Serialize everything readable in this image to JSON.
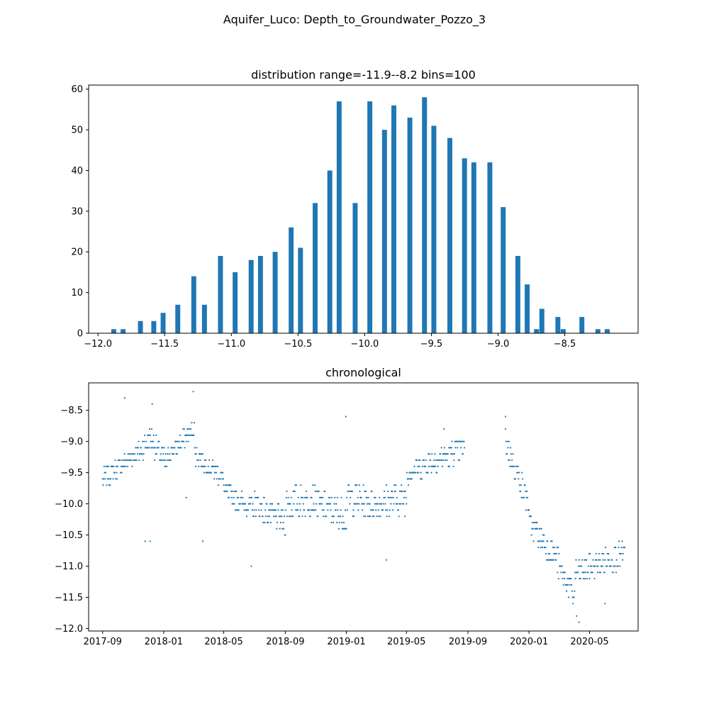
{
  "figure": {
    "suptitle": "Aquifer_Luco: Depth_to_Groundwater_Pozzo_3"
  },
  "colors": {
    "series": "#1f77b4",
    "axes": "#000000",
    "background": "#ffffff"
  },
  "chart_data": [
    {
      "type": "bar",
      "title": "distribution range=-11.9--8.2 bins=100",
      "xlabel": "",
      "ylabel": "",
      "xlim": [
        -12.07,
        -7.95
      ],
      "ylim": [
        0,
        61
      ],
      "bar_width": 0.037,
      "xticks": [
        -12.0,
        -11.5,
        -11.0,
        -10.5,
        -10.0,
        -9.5,
        -9.0,
        -8.5
      ],
      "xtick_labels": [
        "−12.0",
        "−11.5",
        "−11.0",
        "−10.5",
        "−10.0",
        "−9.5",
        "−9.0",
        "−8.5"
      ],
      "yticks": [
        0,
        10,
        20,
        30,
        40,
        50,
        60
      ],
      "ytick_labels": [
        "0",
        "10",
        "20",
        "30",
        "40",
        "50",
        "60"
      ],
      "grid": false,
      "bins": [
        {
          "x": -11.9,
          "count": 1
        },
        {
          "x": -11.83,
          "count": 1
        },
        {
          "x": -11.7,
          "count": 3
        },
        {
          "x": -11.6,
          "count": 3
        },
        {
          "x": -11.53,
          "count": 5
        },
        {
          "x": -11.42,
          "count": 7
        },
        {
          "x": -11.3,
          "count": 14
        },
        {
          "x": -11.22,
          "count": 7
        },
        {
          "x": -11.1,
          "count": 19
        },
        {
          "x": -10.99,
          "count": 15
        },
        {
          "x": -10.87,
          "count": 18
        },
        {
          "x": -10.8,
          "count": 19
        },
        {
          "x": -10.69,
          "count": 20
        },
        {
          "x": -10.57,
          "count": 26
        },
        {
          "x": -10.5,
          "count": 21
        },
        {
          "x": -10.39,
          "count": 32
        },
        {
          "x": -10.28,
          "count": 40
        },
        {
          "x": -10.21,
          "count": 57
        },
        {
          "x": -10.09,
          "count": 32
        },
        {
          "x": -9.98,
          "count": 57
        },
        {
          "x": -9.87,
          "count": 50
        },
        {
          "x": -9.8,
          "count": 56
        },
        {
          "x": -9.68,
          "count": 53
        },
        {
          "x": -9.57,
          "count": 58
        },
        {
          "x": -9.5,
          "count": 51
        },
        {
          "x": -9.38,
          "count": 48
        },
        {
          "x": -9.27,
          "count": 43
        },
        {
          "x": -9.2,
          "count": 42
        },
        {
          "x": -9.08,
          "count": 42
        },
        {
          "x": -8.98,
          "count": 31
        },
        {
          "x": -8.87,
          "count": 19
        },
        {
          "x": -8.8,
          "count": 12
        },
        {
          "x": -8.73,
          "count": 1
        },
        {
          "x": -8.69,
          "count": 6
        },
        {
          "x": -8.57,
          "count": 4
        },
        {
          "x": -8.53,
          "count": 1
        },
        {
          "x": -8.39,
          "count": 4
        },
        {
          "x": -8.27,
          "count": 1
        },
        {
          "x": -8.2,
          "count": 1
        }
      ]
    },
    {
      "type": "scatter",
      "title": "chronological",
      "xlabel": "",
      "ylabel": "",
      "x_axis": "date",
      "xlim": [
        "2017-08-04",
        "2020-08-06"
      ],
      "ylim": [
        -12.04,
        -8.06
      ],
      "xticks": [
        "2017-09-01",
        "2018-01-01",
        "2018-05-01",
        "2018-09-01",
        "2019-01-01",
        "2019-05-01",
        "2019-09-01",
        "2020-01-01",
        "2020-05-01"
      ],
      "xtick_labels": [
        "2017-09",
        "2018-01",
        "2018-05",
        "2018-09",
        "2019-01",
        "2019-05",
        "2019-09",
        "2020-01",
        "2020-05"
      ],
      "yticks": [
        -12.0,
        -11.5,
        -11.0,
        -10.5,
        -10.0,
        -9.5,
        -9.0,
        -8.5
      ],
      "ytick_labels": [
        "−12.0",
        "−11.5",
        "−11.0",
        "−10.5",
        "−10.0",
        "−9.5",
        "−9.0",
        "−8.5"
      ],
      "grid": false,
      "marker": "dot",
      "series_segments": [
        {
          "start": "2017-09-01",
          "end": "2017-11-09",
          "y_start": -9.6,
          "y_end": -9.2,
          "spread": 0.15
        },
        {
          "start": "2017-11-10",
          "end": "2017-12-09",
          "y_start": -9.2,
          "y_end": -8.9,
          "spread": 0.2
        },
        {
          "start": "2017-12-10",
          "end": "2018-01-09",
          "y_start": -9.0,
          "y_end": -9.4,
          "spread": 0.2
        },
        {
          "start": "2018-01-10",
          "end": "2018-03-03",
          "y_start": -9.2,
          "y_end": -8.8,
          "spread": 0.15
        },
        {
          "start": "2018-03-04",
          "end": "2018-05-01",
          "y_start": -9.2,
          "y_end": -9.6,
          "spread": 0.15
        },
        {
          "start": "2018-05-02",
          "end": "2018-07-01",
          "y_start": -9.8,
          "y_end": -10.1,
          "spread": 0.15
        },
        {
          "start": "2018-07-02",
          "end": "2018-09-01",
          "y_start": -10.0,
          "y_end": -10.3,
          "spread": 0.2
        },
        {
          "start": "2018-09-02",
          "end": "2018-11-01",
          "y_start": -10.0,
          "y_end": -9.9,
          "spread": 0.25
        },
        {
          "start": "2018-11-02",
          "end": "2019-01-01",
          "y_start": -10.0,
          "y_end": -10.2,
          "spread": 0.25
        },
        {
          "start": "2019-01-02",
          "end": "2019-03-01",
          "y_start": -9.9,
          "y_end": -10.0,
          "spread": 0.25
        },
        {
          "start": "2019-03-02",
          "end": "2019-05-01",
          "y_start": -10.0,
          "y_end": -9.9,
          "spread": 0.25
        },
        {
          "start": "2019-05-02",
          "end": "2019-08-25",
          "y_start": -9.5,
          "y_end": -9.1,
          "spread": 0.2
        },
        {
          "start": "2019-11-15",
          "end": "2019-12-31",
          "y_start": -9.0,
          "y_end": -10.0,
          "spread": 0.2
        },
        {
          "start": "2020-01-01",
          "end": "2020-02-28",
          "y_start": -10.3,
          "y_end": -10.9,
          "spread": 0.2
        },
        {
          "start": "2020-02-29",
          "end": "2020-04-01",
          "y_start": -11.0,
          "y_end": -11.5,
          "spread": 0.2
        },
        {
          "start": "2020-04-02",
          "end": "2020-05-10",
          "y_start": -11.1,
          "y_end": -11.0,
          "spread": 0.2
        },
        {
          "start": "2020-05-11",
          "end": "2020-07-10",
          "y_start": -11.0,
          "y_end": -10.8,
          "spread": 0.2
        }
      ],
      "notable_points": [
        {
          "x": "2017-10-15",
          "y": -8.3
        },
        {
          "x": "2017-12-09",
          "y": -8.4
        },
        {
          "x": "2018-03-01",
          "y": -8.2
        },
        {
          "x": "2018-02-15",
          "y": -9.9
        },
        {
          "x": "2018-03-20",
          "y": -10.6
        },
        {
          "x": "2018-06-25",
          "y": -11.0
        },
        {
          "x": "2018-12-31",
          "y": -8.6
        },
        {
          "x": "2019-03-22",
          "y": -10.9
        },
        {
          "x": "2017-11-25",
          "y": -10.6
        },
        {
          "x": "2017-12-05",
          "y": -10.6
        },
        {
          "x": "2019-07-15",
          "y": -8.8
        },
        {
          "x": "2019-11-15",
          "y": -8.6
        },
        {
          "x": "2020-04-10",
          "y": -11.9
        },
        {
          "x": "2020-04-05",
          "y": -11.8
        },
        {
          "x": "2020-06-01",
          "y": -11.6
        }
      ]
    }
  ]
}
